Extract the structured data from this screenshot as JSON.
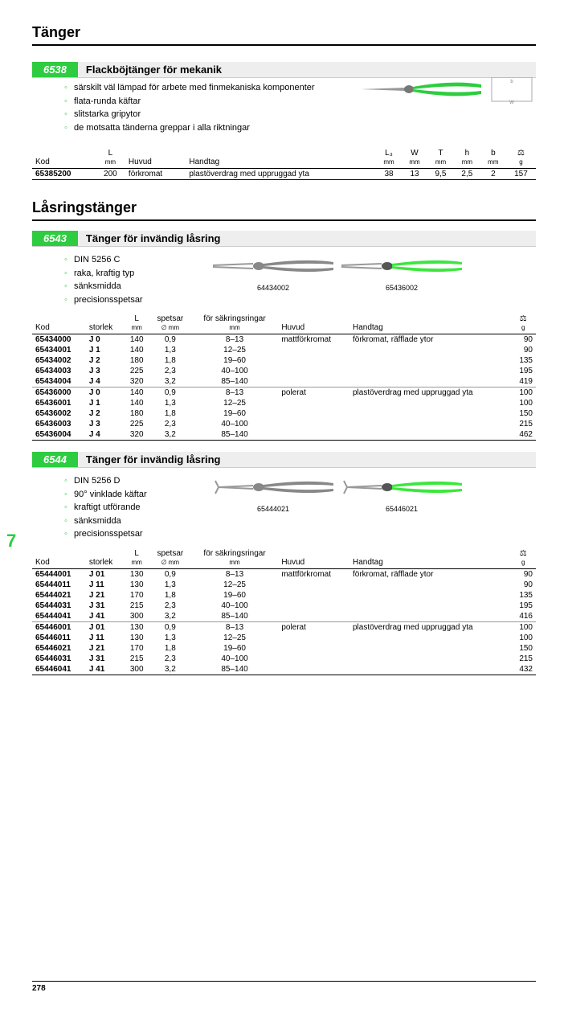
{
  "page_title": "Tänger",
  "section_6538": {
    "code": "6538",
    "title": "Flackböjtänger för mekanik",
    "features": [
      "särskilt väl lämpad för arbete med finmekaniska komponenter",
      "flata-runda käftar",
      "slitstarka gripytor",
      "de motsatta tänderna greppar i alla riktningar"
    ],
    "columns": {
      "kod": "Kod",
      "l": "L",
      "l_unit": "mm",
      "huvud": "Huvud",
      "handtag": "Handtag",
      "l3": "L₃",
      "l3_unit": "mm",
      "w": "W",
      "w_unit": "mm",
      "t": "T",
      "t_unit": "mm",
      "h": "h",
      "h_unit": "mm",
      "b": "b",
      "b_unit": "mm",
      "g": "g"
    },
    "rows": [
      {
        "kod": "65385200",
        "l": "200",
        "huvud": "förkromat",
        "handtag": "plastöverdrag med uppruggad yta",
        "l3": "38",
        "w": "13",
        "t": "9,5",
        "h": "2,5",
        "b": "2",
        "g": "157"
      }
    ]
  },
  "subsection_title": "Låsringstänger",
  "section_6543": {
    "code": "6543",
    "title": "Tänger för invändig låsring",
    "features": [
      "DIN 5256 C",
      "raka, kraftig typ",
      "sänksmidda",
      "precisionsspetsar"
    ],
    "img_labels": [
      "64434002",
      "65436002"
    ],
    "columns": {
      "kod": "Kod",
      "storlek": "storlek",
      "l": "L",
      "l_unit": "mm",
      "sp": "spetsar",
      "sp_unit": "∅ mm",
      "rng": "för säkringsringar",
      "rng_unit": "mm",
      "huvud": "Huvud",
      "handtag": "Handtag",
      "g": "g"
    },
    "rows1": [
      {
        "kod": "65434000",
        "storlek": "J 0",
        "l": "140",
        "sp": "0,9",
        "rng": "8–13",
        "huvud": "mattförkromat",
        "handtag": "förkromat, räfflade ytor",
        "g": "90"
      },
      {
        "kod": "65434001",
        "storlek": "J 1",
        "l": "140",
        "sp": "1,3",
        "rng": "12–25",
        "g": "90"
      },
      {
        "kod": "65434002",
        "storlek": "J 2",
        "l": "180",
        "sp": "1,8",
        "rng": "19–60",
        "g": "135"
      },
      {
        "kod": "65434003",
        "storlek": "J 3",
        "l": "225",
        "sp": "2,3",
        "rng": "40–100",
        "g": "195"
      },
      {
        "kod": "65434004",
        "storlek": "J 4",
        "l": "320",
        "sp": "3,2",
        "rng": "85–140",
        "g": "419"
      }
    ],
    "rows2": [
      {
        "kod": "65436000",
        "storlek": "J 0",
        "l": "140",
        "sp": "0,9",
        "rng": "8–13",
        "huvud": "polerat",
        "handtag": "plastöverdrag med uppruggad yta",
        "g": "100"
      },
      {
        "kod": "65436001",
        "storlek": "J 1",
        "l": "140",
        "sp": "1,3",
        "rng": "12–25",
        "g": "100"
      },
      {
        "kod": "65436002",
        "storlek": "J 2",
        "l": "180",
        "sp": "1,8",
        "rng": "19–60",
        "g": "150"
      },
      {
        "kod": "65436003",
        "storlek": "J 3",
        "l": "225",
        "sp": "2,3",
        "rng": "40–100",
        "g": "215"
      },
      {
        "kod": "65436004",
        "storlek": "J 4",
        "l": "320",
        "sp": "3,2",
        "rng": "85–140",
        "g": "462"
      }
    ]
  },
  "section_6544": {
    "code": "6544",
    "title": "Tänger för invändig låsring",
    "features": [
      "DIN 5256 D",
      "90° vinklade käftar",
      "kraftigt utförande",
      "sänksmidda",
      "precisionsspetsar"
    ],
    "img_labels": [
      "65444021",
      "65446021"
    ],
    "columns": {
      "kod": "Kod",
      "storlek": "storlek",
      "l": "L",
      "l_unit": "mm",
      "sp": "spetsar",
      "sp_unit": "∅ mm",
      "rng": "för säkringsringar",
      "rng_unit": "mm",
      "huvud": "Huvud",
      "handtag": "Handtag",
      "g": "g"
    },
    "rows1": [
      {
        "kod": "65444001",
        "storlek": "J 01",
        "l": "130",
        "sp": "0,9",
        "rng": "8–13",
        "huvud": "mattförkromat",
        "handtag": "förkromat, räfflade ytor",
        "g": "90"
      },
      {
        "kod": "65444011",
        "storlek": "J 11",
        "l": "130",
        "sp": "1,3",
        "rng": "12–25",
        "g": "90"
      },
      {
        "kod": "65444021",
        "storlek": "J 21",
        "l": "170",
        "sp": "1,8",
        "rng": "19–60",
        "g": "135"
      },
      {
        "kod": "65444031",
        "storlek": "J 31",
        "l": "215",
        "sp": "2,3",
        "rng": "40–100",
        "g": "195"
      },
      {
        "kod": "65444041",
        "storlek": "J 41",
        "l": "300",
        "sp": "3,2",
        "rng": "85–140",
        "g": "416"
      }
    ],
    "rows2": [
      {
        "kod": "65446001",
        "storlek": "J 01",
        "l": "130",
        "sp": "0,9",
        "rng": "8–13",
        "huvud": "polerat",
        "handtag": "plastöverdrag med uppruggad yta",
        "g": "100"
      },
      {
        "kod": "65446011",
        "storlek": "J 11",
        "l": "130",
        "sp": "1,3",
        "rng": "12–25",
        "g": "100"
      },
      {
        "kod": "65446021",
        "storlek": "J 21",
        "l": "170",
        "sp": "1,8",
        "rng": "19–60",
        "g": "150"
      },
      {
        "kod": "65446031",
        "storlek": "J 31",
        "l": "215",
        "sp": "2,3",
        "rng": "40–100",
        "g": "215"
      },
      {
        "kod": "65446041",
        "storlek": "J 41",
        "l": "300",
        "sp": "3,2",
        "rng": "85–140",
        "g": "432"
      }
    ]
  },
  "side_page": "7",
  "footer_page": "278",
  "colors": {
    "accent": "#2ecc40",
    "grey_handle": "#888",
    "green_handle": "#3de63d"
  }
}
